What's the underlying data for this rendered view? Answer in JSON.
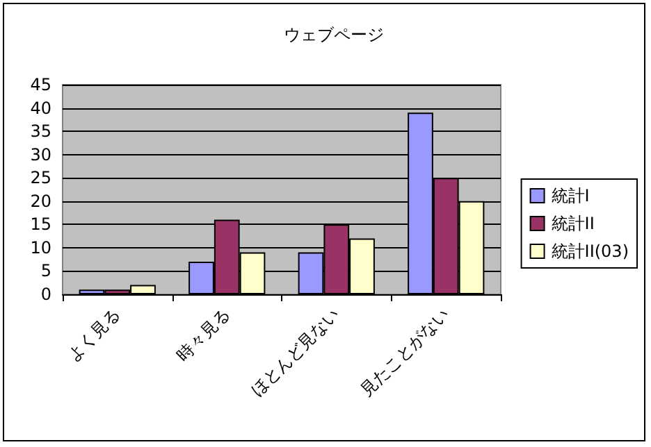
{
  "chart_data": {
    "type": "bar",
    "title": "ウェブページ",
    "categories": [
      "よく見る",
      "時々見る",
      "ほとんど見ない",
      "見たことがない"
    ],
    "series": [
      {
        "name": "統計I",
        "color": "#9999ff",
        "values": [
          1,
          7,
          9,
          39
        ]
      },
      {
        "name": "統計II",
        "color": "#993366",
        "values": [
          1,
          16,
          15,
          25
        ]
      },
      {
        "name": "統計II(03)",
        "color": "#ffffcc",
        "values": [
          2,
          9,
          12,
          20
        ]
      }
    ],
    "ylim": [
      0,
      45
    ],
    "yticks": [
      0,
      5,
      10,
      15,
      20,
      25,
      30,
      35,
      40,
      45
    ],
    "grid": "y",
    "legend": "right"
  }
}
